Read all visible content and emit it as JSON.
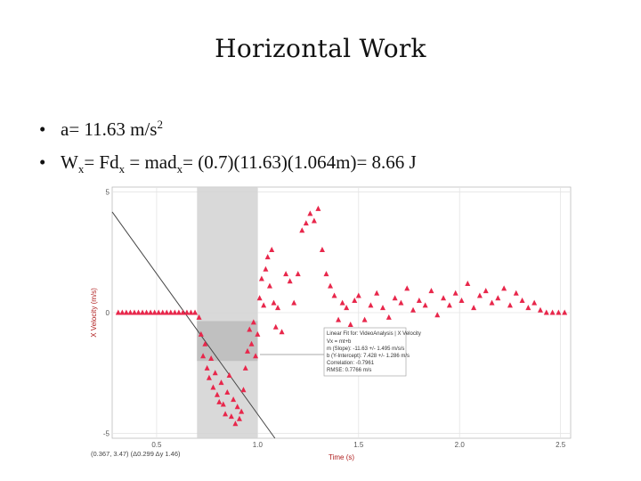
{
  "slide": {
    "title": "Horizontal Work",
    "bullets": [
      {
        "parts": [
          "a= 11.63 m/s",
          "2"
        ]
      },
      {
        "parts": [
          "W",
          "x",
          "= Fd",
          "x",
          " = mad",
          "x",
          "= (0.7)(11.63)(1.064m)= 8.66 J"
        ]
      }
    ]
  },
  "chart_data": {
    "type": "scatter",
    "xlabel": "Time (s)",
    "ylabel": "X Velocity (m/s)",
    "xlim": [
      0.28,
      2.55
    ],
    "ylim": [
      -5.2,
      5.2
    ],
    "x_ticks": [
      "0.5",
      "1.0",
      "1.5",
      "2.0",
      "2.5"
    ],
    "y_ticks": [
      "5",
      "0",
      "-5"
    ],
    "selection_range": [
      0.7,
      1.0
    ],
    "point_color": "#e8274b",
    "fit_line_color": "#444444",
    "fit_box": {
      "title": "Linear Fit for: VideoAnalysis | X Velocity",
      "lines": [
        "Vx = mt+b",
        "m (Slope): -11.63 +/- 1.495 m/s/s",
        "b (Y-Intercept): 7.428 +/- 1.286 m/s",
        "Correlation: -0.7961",
        "RMSE: 0.7766 m/s"
      ]
    },
    "fit": {
      "slope": -11.63,
      "intercept": 7.428
    },
    "status": "(0.367, 3.47) (Δ0.299 Δy 1.46)",
    "series": [
      {
        "x": [
          0.31,
          0.33,
          0.35,
          0.37,
          0.39,
          0.41,
          0.43,
          0.45,
          0.47,
          0.49,
          0.51,
          0.53,
          0.55,
          0.57,
          0.59,
          0.61,
          0.63,
          0.65,
          0.67,
          0.69,
          0.71,
          0.72,
          0.73,
          0.74,
          0.75,
          0.76,
          0.77,
          0.78,
          0.79,
          0.8,
          0.81,
          0.82,
          0.83,
          0.84,
          0.85,
          0.86,
          0.87,
          0.88,
          0.89,
          0.9,
          0.91,
          0.92,
          0.93,
          0.94,
          0.95,
          0.96,
          0.97,
          0.98,
          0.99,
          1.0,
          1.01,
          1.02,
          1.03,
          1.04,
          1.05,
          1.06,
          1.07,
          1.08,
          1.09,
          1.1,
          1.12,
          1.14,
          1.16,
          1.18,
          1.2,
          1.22,
          1.24,
          1.26,
          1.28,
          1.3,
          1.32,
          1.34,
          1.36,
          1.38,
          1.4,
          1.42,
          1.44,
          1.46,
          1.48,
          1.5,
          1.53,
          1.56,
          1.59,
          1.62,
          1.65,
          1.68,
          1.71,
          1.74,
          1.77,
          1.8,
          1.83,
          1.86,
          1.89,
          1.92,
          1.95,
          1.98,
          2.01,
          2.04,
          2.07,
          2.1,
          2.13,
          2.16,
          2.19,
          2.22,
          2.25,
          2.28,
          2.31,
          2.34,
          2.37,
          2.4,
          2.43,
          2.46,
          2.49,
          2.52
        ],
        "y": [
          0,
          0,
          0,
          0,
          0,
          0,
          0,
          0,
          0,
          0,
          0,
          0,
          0,
          0,
          0,
          0,
          0,
          0,
          0,
          0,
          -0.2,
          -0.9,
          -1.8,
          -1.3,
          -2.3,
          -2.7,
          -1.9,
          -3.1,
          -2.5,
          -3.4,
          -3.7,
          -2.9,
          -3.8,
          -4.2,
          -3.3,
          -2.6,
          -4.3,
          -3.6,
          -4.6,
          -3.9,
          -4.4,
          -4.1,
          -3.2,
          -2.3,
          -1.6,
          -0.7,
          -1.3,
          -0.4,
          -1.8,
          -0.9,
          0.6,
          1.4,
          0.3,
          1.8,
          2.3,
          1.1,
          2.6,
          0.4,
          -0.6,
          0.2,
          -0.8,
          1.6,
          1.3,
          0.4,
          1.6,
          3.4,
          3.7,
          4.1,
          3.8,
          4.3,
          2.6,
          1.6,
          1.1,
          0.7,
          -0.3,
          0.4,
          0.2,
          -0.5,
          0.5,
          0.7,
          -0.3,
          0.3,
          0.8,
          0.2,
          -0.2,
          0.6,
          0.4,
          1.0,
          0.1,
          0.5,
          0.3,
          0.9,
          -0.1,
          0.6,
          0.3,
          0.8,
          0.5,
          1.2,
          0.2,
          0.7,
          0.9,
          0.4,
          0.6,
          1.0,
          0.3,
          0.8,
          0.5,
          0.2,
          0.4,
          0.1,
          0,
          0,
          0,
          0
        ]
      }
    ]
  }
}
